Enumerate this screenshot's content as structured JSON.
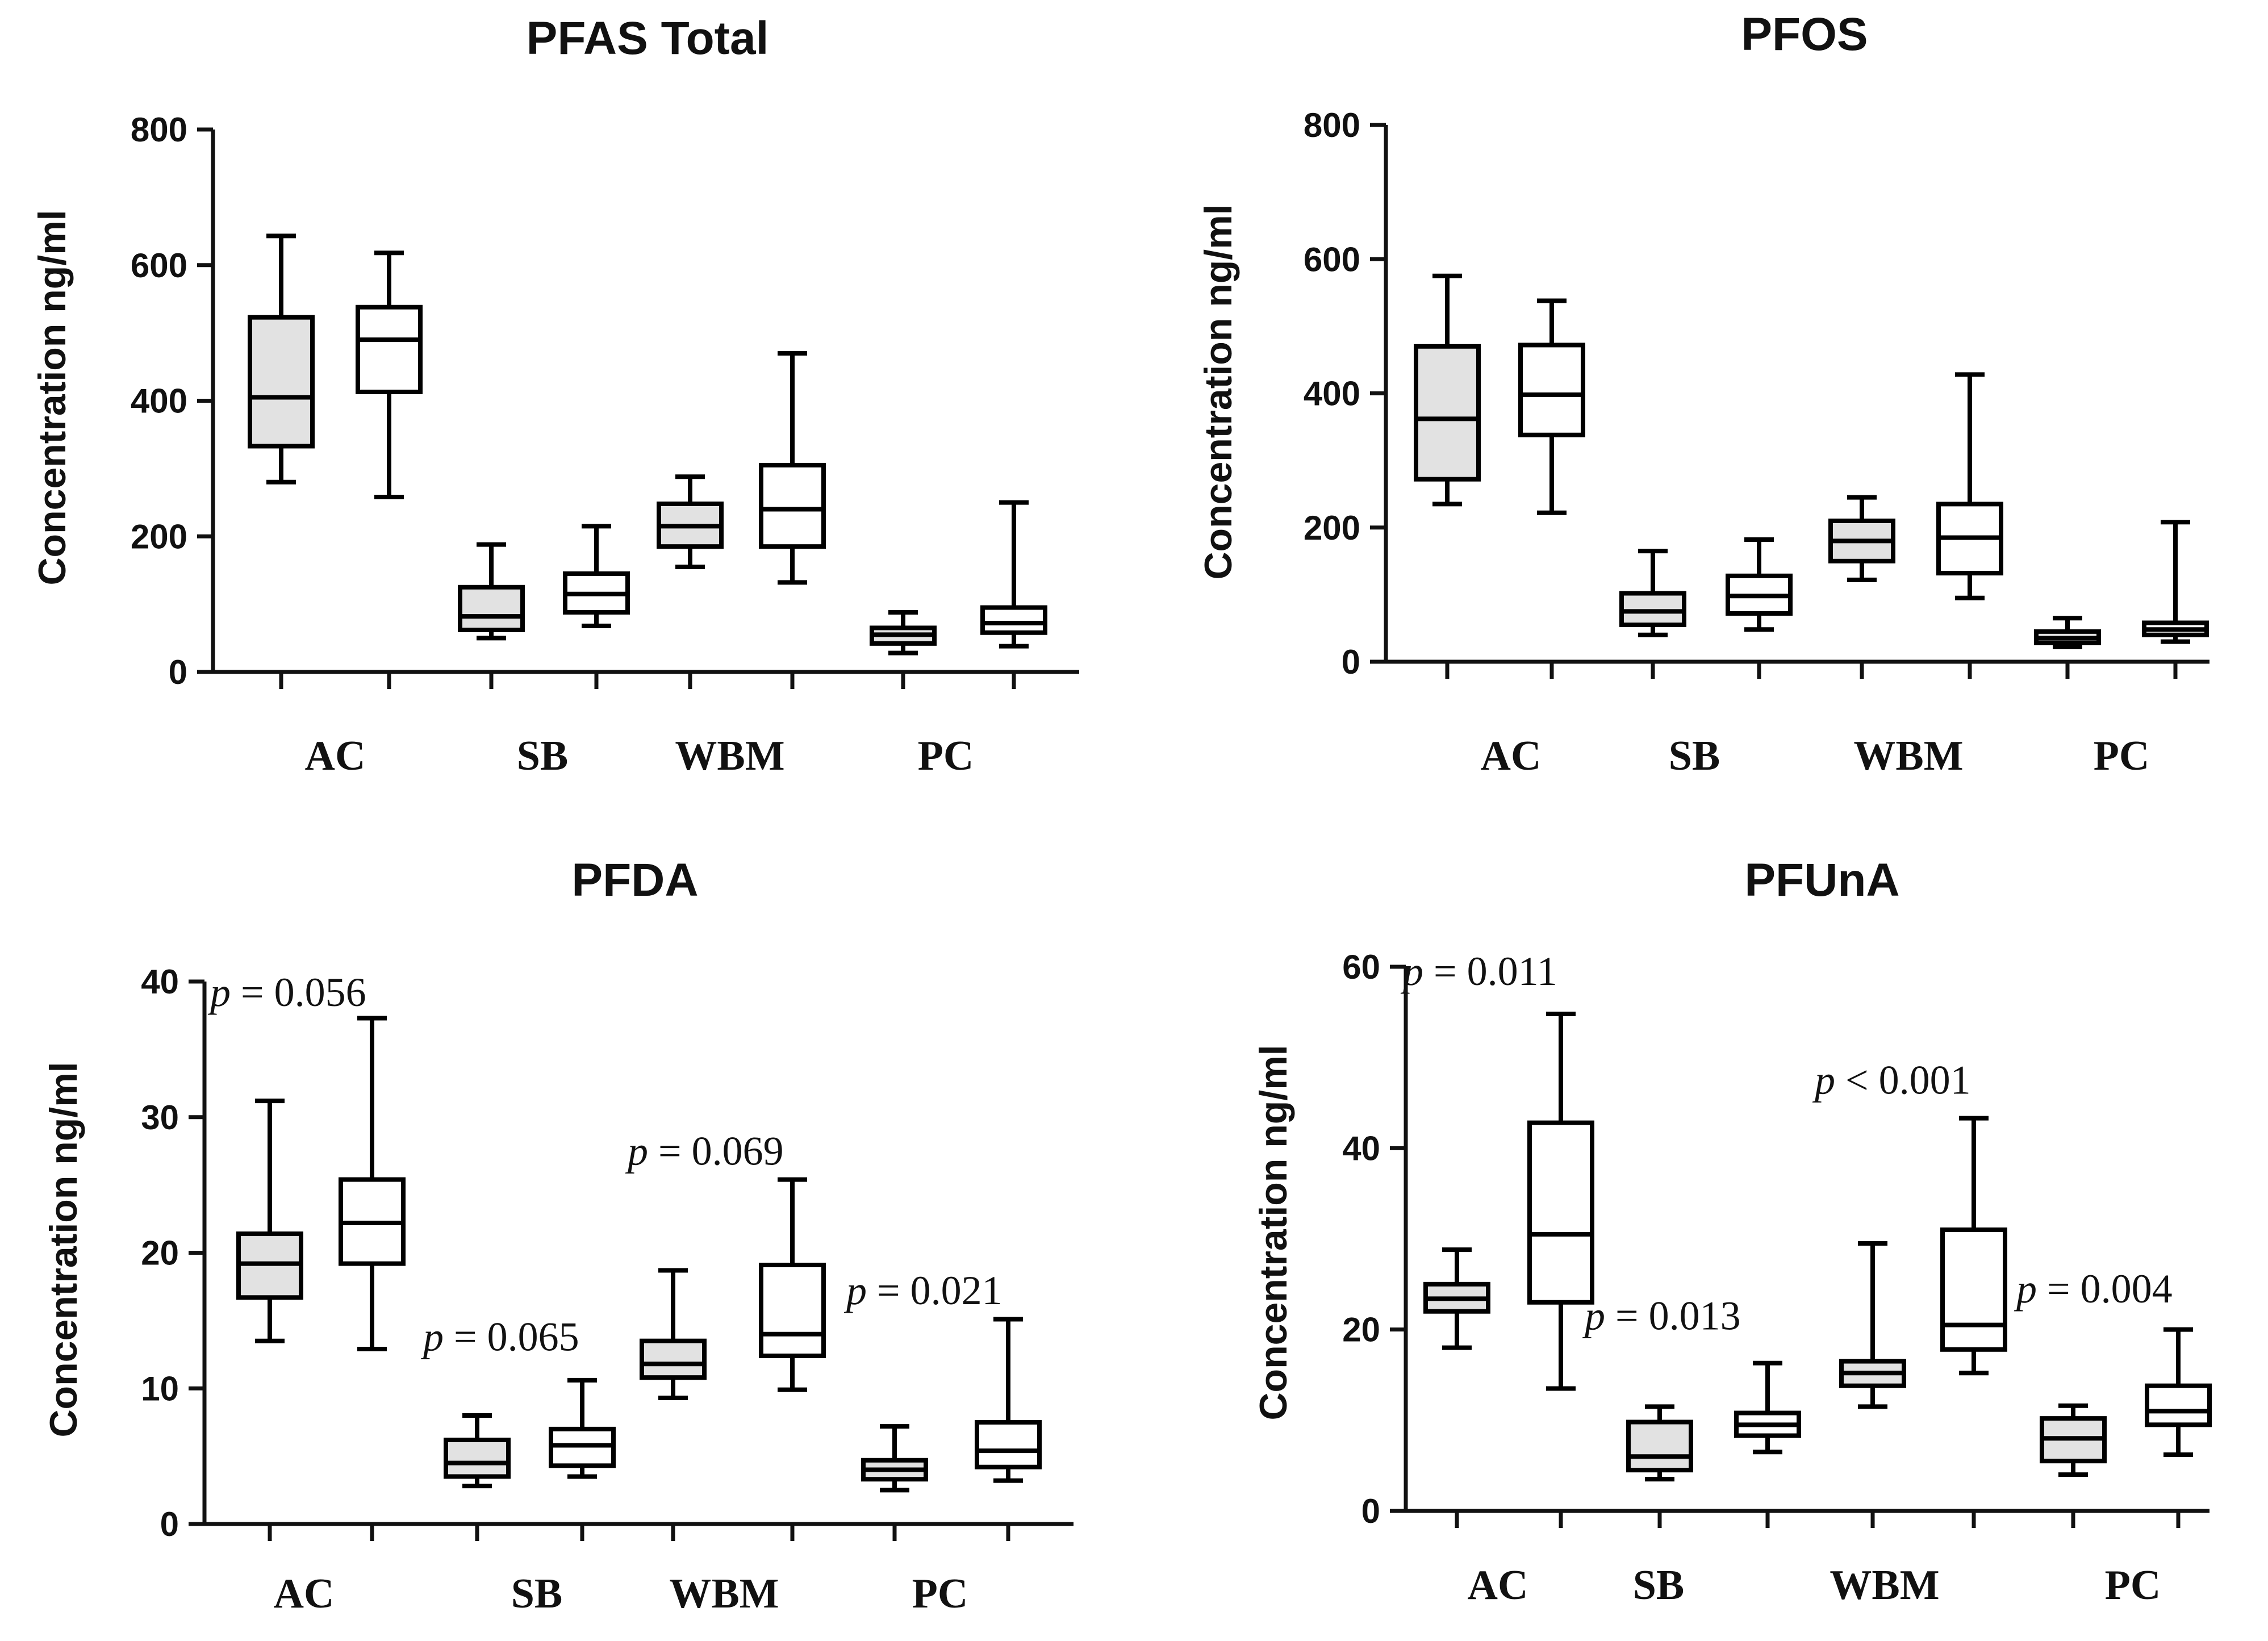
{
  "figure": {
    "colors": {
      "group1_fill": "#e2e2e2",
      "group2_fill": "#ffffff",
      "stroke": "#000000"
    }
  },
  "chart_data": [
    {
      "type": "box",
      "title": "PFAS Total",
      "ylabel": "Concentration ng/ml",
      "xlabel": "",
      "ylim": [
        0,
        800
      ],
      "yticks": [
        "0",
        "200",
        "400",
        "600",
        "800"
      ],
      "categories": [
        "AC",
        "SB",
        "WBM",
        "PC"
      ],
      "series": [
        {
          "name": "group 1 (shaded)",
          "boxes": [
            {
              "category": "AC",
              "min": 280,
              "q1": 333,
              "median": 405,
              "q3": 523,
              "max": 643
            },
            {
              "category": "SB",
              "min": 50,
              "q1": 62,
              "median": 82,
              "q3": 125,
              "max": 188
            },
            {
              "category": "WBM",
              "min": 155,
              "q1": 185,
              "median": 215,
              "q3": 248,
              "max": 288
            },
            {
              "category": "PC",
              "min": 28,
              "q1": 42,
              "median": 55,
              "q3": 65,
              "max": 88
            }
          ]
        },
        {
          "name": "group 2 (open)",
          "boxes": [
            {
              "category": "AC",
              "min": 258,
              "q1": 413,
              "median": 490,
              "q3": 538,
              "max": 618
            },
            {
              "category": "SB",
              "min": 68,
              "q1": 88,
              "median": 115,
              "q3": 145,
              "max": 215
            },
            {
              "category": "WBM",
              "min": 132,
              "q1": 185,
              "median": 240,
              "q3": 305,
              "max": 470
            },
            {
              "category": "PC",
              "min": 38,
              "q1": 58,
              "median": 72,
              "q3": 95,
              "max": 250
            }
          ]
        }
      ],
      "annotations": []
    },
    {
      "type": "box",
      "title": "PFOS",
      "ylabel": "Concentration ng/ml",
      "xlabel": "",
      "ylim": [
        0,
        800
      ],
      "yticks": [
        "0",
        "200",
        "400",
        "600",
        "800"
      ],
      "categories": [
        "AC",
        "SB",
        "WBM",
        "PC"
      ],
      "series": [
        {
          "name": "group 1 (shaded)",
          "boxes": [
            {
              "category": "AC",
              "min": 235,
              "q1": 272,
              "median": 362,
              "q3": 470,
              "max": 575
            },
            {
              "category": "SB",
              "min": 40,
              "q1": 55,
              "median": 75,
              "q3": 102,
              "max": 165
            },
            {
              "category": "WBM",
              "min": 122,
              "q1": 150,
              "median": 180,
              "q3": 210,
              "max": 245
            },
            {
              "category": "PC",
              "min": 22,
              "q1": 28,
              "median": 35,
              "q3": 45,
              "max": 65
            }
          ]
        },
        {
          "name": "group 2 (open)",
          "boxes": [
            {
              "category": "AC",
              "min": 222,
              "q1": 338,
              "median": 398,
              "q3": 472,
              "max": 538
            },
            {
              "category": "SB",
              "min": 48,
              "q1": 72,
              "median": 98,
              "q3": 128,
              "max": 182
            },
            {
              "category": "WBM",
              "min": 95,
              "q1": 132,
              "median": 185,
              "q3": 235,
              "max": 428
            },
            {
              "category": "PC",
              "min": 30,
              "q1": 40,
              "median": 48,
              "q3": 58,
              "max": 208
            }
          ]
        }
      ],
      "annotations": []
    },
    {
      "type": "box",
      "title": "PFDA",
      "ylabel": "Concentration ng/ml",
      "xlabel": "",
      "ylim": [
        0,
        40
      ],
      "yticks": [
        "0",
        "10",
        "20",
        "30",
        "40"
      ],
      "categories": [
        "AC",
        "SB",
        "WBM",
        "PC"
      ],
      "series": [
        {
          "name": "group 1 (shaded)",
          "boxes": [
            {
              "category": "AC",
              "min": 13.5,
              "q1": 16.7,
              "median": 19.2,
              "q3": 21.4,
              "max": 31.2
            },
            {
              "category": "SB",
              "min": 2.8,
              "q1": 3.5,
              "median": 4.5,
              "q3": 6.2,
              "max": 8.0
            },
            {
              "category": "WBM",
              "min": 9.3,
              "q1": 10.8,
              "median": 11.8,
              "q3": 13.5,
              "max": 18.7
            },
            {
              "category": "PC",
              "min": 2.5,
              "q1": 3.3,
              "median": 4.0,
              "q3": 4.7,
              "max": 7.2
            }
          ]
        },
        {
          "name": "group 2 (open)",
          "boxes": [
            {
              "category": "AC",
              "min": 12.9,
              "q1": 19.2,
              "median": 22.2,
              "q3": 25.4,
              "max": 37.3
            },
            {
              "category": "SB",
              "min": 3.5,
              "q1": 4.3,
              "median": 5.8,
              "q3": 7.0,
              "max": 10.6
            },
            {
              "category": "WBM",
              "min": 9.9,
              "q1": 12.4,
              "median": 14.0,
              "q3": 19.1,
              "max": 25.4
            },
            {
              "category": "PC",
              "min": 3.2,
              "q1": 4.2,
              "median": 5.4,
              "q3": 7.5,
              "max": 15.1
            }
          ]
        }
      ],
      "annotations": [
        {
          "text_prefix": "p",
          "text": " = 0.056",
          "x_cat": "AC",
          "y": 38.2
        },
        {
          "text_prefix": "p",
          "text": " = 0.065",
          "x_cat": "SB",
          "y": 12.8
        },
        {
          "text_prefix": "p",
          "text": " = 0.069",
          "x_cat": "WBM",
          "y": 26.5
        },
        {
          "text_prefix": "p",
          "text": " = 0.021",
          "x_cat": "PC",
          "y": 16.2
        }
      ]
    },
    {
      "type": "box",
      "title": "PFUnA",
      "ylabel": "Concentration ng/ml",
      "xlabel": "",
      "ylim": [
        0,
        60
      ],
      "yticks": [
        "0",
        "20",
        "40",
        "60"
      ],
      "categories": [
        "AC",
        "SB",
        "WBM",
        "PC"
      ],
      "series": [
        {
          "name": "group 1 (shaded)",
          "boxes": [
            {
              "category": "AC",
              "min": 18.0,
              "q1": 22.0,
              "median": 23.4,
              "q3": 25.0,
              "max": 28.8
            },
            {
              "category": "SB",
              "min": 3.5,
              "q1": 4.5,
              "median": 6.0,
              "q3": 9.8,
              "max": 11.5
            },
            {
              "category": "WBM",
              "min": 11.5,
              "q1": 13.8,
              "median": 15.2,
              "q3": 16.5,
              "max": 29.5
            },
            {
              "category": "PC",
              "min": 4.0,
              "q1": 5.5,
              "median": 8.0,
              "q3": 10.2,
              "max": 11.6
            }
          ]
        },
        {
          "name": "group 2 (open)",
          "boxes": [
            {
              "category": "AC",
              "min": 13.5,
              "q1": 23.0,
              "median": 30.5,
              "q3": 42.8,
              "max": 54.8
            },
            {
              "category": "SB",
              "min": 6.5,
              "q1": 8.3,
              "median": 9.5,
              "q3": 10.8,
              "max": 16.3
            },
            {
              "category": "WBM",
              "min": 15.2,
              "q1": 17.8,
              "median": 20.5,
              "q3": 31.0,
              "max": 43.3
            },
            {
              "category": "PC",
              "min": 6.2,
              "q1": 9.5,
              "median": 11.0,
              "q3": 13.8,
              "max": 20.0
            }
          ]
        }
      ],
      "annotations": [
        {
          "text_prefix": "p",
          "text": " = 0.011",
          "x_cat": "AC",
          "y": 58.0
        },
        {
          "text_prefix": "p",
          "text": " = 0.013",
          "x_cat": "SB",
          "y": 20.0
        },
        {
          "text_prefix": "p",
          "text": " < 0.001",
          "x_cat": "WBM",
          "y": 46.0
        },
        {
          "text_prefix": "p",
          "text": " = 0.004",
          "x_cat": "PC",
          "y": 23.0
        }
      ]
    }
  ]
}
